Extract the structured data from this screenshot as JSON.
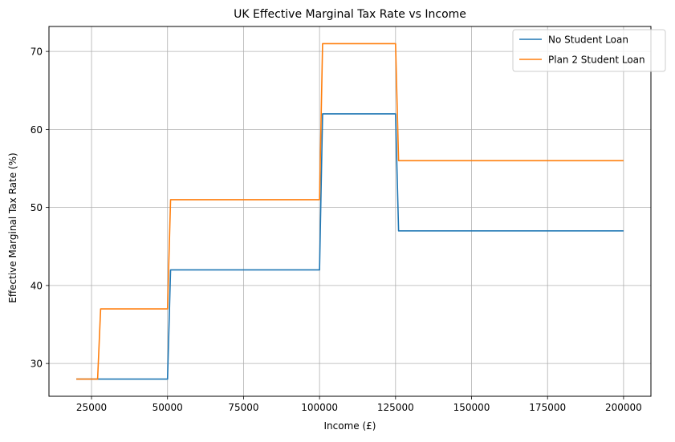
{
  "chart_data": {
    "type": "line",
    "title": "UK Effective Marginal Tax Rate vs Income",
    "xlabel": "Income (£)",
    "ylabel": "Effective Marginal Tax Rate (%)",
    "xlim": [
      11000,
      209000
    ],
    "ylim": [
      25.8,
      73.2
    ],
    "xticks": [
      25000,
      50000,
      75000,
      100000,
      125000,
      150000,
      175000,
      200000
    ],
    "yticks": [
      30,
      40,
      50,
      60,
      70
    ],
    "grid": true,
    "legend_position": "top-right",
    "series": [
      {
        "name": "No Student Loan",
        "color": "#1f77b4",
        "x": [
          20000,
          50000,
          51000,
          100000,
          101000,
          125000,
          126000,
          200000
        ],
        "y": [
          28,
          28,
          42,
          42,
          62,
          62,
          47,
          47
        ]
      },
      {
        "name": "Plan 2 Student Loan",
        "color": "#ff7f0e",
        "x": [
          20000,
          27000,
          28000,
          50000,
          51000,
          100000,
          101000,
          125000,
          126000,
          200000
        ],
        "y": [
          28,
          28,
          37,
          37,
          51,
          51,
          71,
          71,
          56,
          56
        ]
      }
    ]
  }
}
